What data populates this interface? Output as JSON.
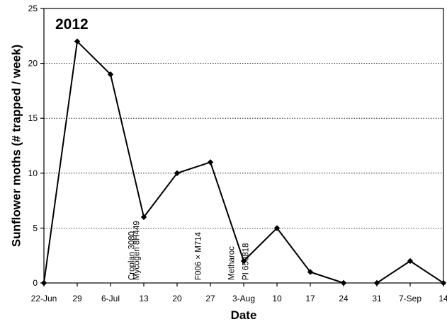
{
  "chart_data": {
    "type": "line",
    "title": "2012",
    "xlabel": "Date",
    "ylabel": "Sunflower moths (# trapped / week)",
    "ylim": [
      0,
      25
    ],
    "yticks": [
      0,
      5,
      10,
      15,
      20,
      25
    ],
    "grid": "horizontal dotted",
    "legend": "none",
    "colors": {
      "line": "#000000",
      "grid": "#000000"
    },
    "x_tick_labels": [
      "22-Jun",
      "29",
      "6-Jul",
      "13",
      "20",
      "27",
      "3-Aug",
      "10",
      "17",
      "24",
      "31",
      "7-Sep",
      "14"
    ],
    "series": [
      {
        "name": "",
        "x": [
          "2012-06-22",
          "2012-06-29",
          "2012-07-06",
          "2012-07-13",
          "2012-07-20",
          "2012-07-27",
          "2012-08-03",
          "2012-08-10",
          "2012-08-17",
          "2012-08-24",
          "2012-08-31",
          "2012-09-07",
          "2012-09-14"
        ],
        "values": [
          0,
          22,
          19,
          6,
          10,
          11,
          2,
          5,
          1,
          0,
          0,
          2,
          0
        ],
        "segments": [
          [
            0,
            9
          ],
          [
            10,
            12
          ]
        ]
      }
    ],
    "annotations": [
      {
        "text": "Croplan 3080",
        "date": "2012-07-11"
      },
      {
        "text": "Mycogen 8H449",
        "date": "2012-07-12"
      },
      {
        "text": "F006 × M714",
        "date": "2012-07-25"
      },
      {
        "text": "Metharoc",
        "date": "2012-08-01"
      },
      {
        "text": "PI 650818",
        "date": "2012-08-04"
      }
    ]
  }
}
